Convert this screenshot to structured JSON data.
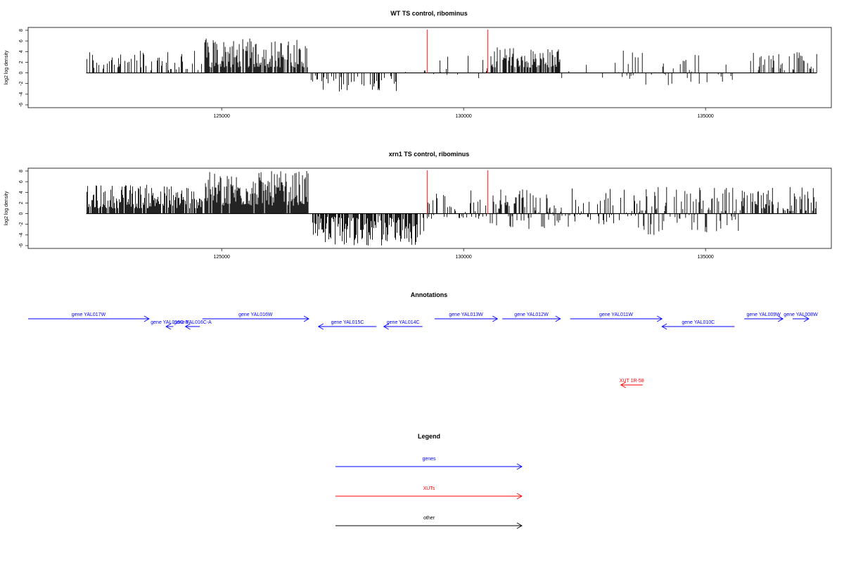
{
  "chart_data": [
    {
      "type": "bar",
      "title": "WT TS control, ribominus",
      "ylabel": "log2 log density",
      "xlabel": "",
      "xlim": [
        121000,
        137600
      ],
      "ylim": [
        -6,
        8
      ],
      "yticks": [
        -6,
        -4,
        -2,
        0,
        2,
        4,
        6,
        8
      ],
      "xticks": [
        125000,
        130000,
        135000
      ],
      "xtick_labels": [
        "125000",
        "130000",
        "135000"
      ],
      "grid": false,
      "markers": [
        {
          "x": 129250,
          "color": "#ff4d4d"
        },
        {
          "x": 130500,
          "color": "#ff4d4d"
        }
      ],
      "series": [
        {
          "color": "#000000",
          "regions": [
            {
              "from": 122200,
              "to": 124600,
              "min": 0.5,
              "max": 4.5,
              "density": 0.35
            },
            {
              "from": 124650,
              "to": 126800,
              "min": 1.0,
              "max": 6.5,
              "density": 0.8
            },
            {
              "from": 126850,
              "to": 128650,
              "min": -3.5,
              "max": -0.5,
              "density": 0.35
            },
            {
              "from": 128650,
              "to": 129250,
              "min": -1.5,
              "max": 0.5,
              "density": 0.15
            },
            {
              "from": 129250,
              "to": 130500,
              "min": -2.0,
              "max": 3.5,
              "density": 0.12
            },
            {
              "from": 130550,
              "to": 132000,
              "min": 1.0,
              "max": 4.8,
              "density": 0.7
            },
            {
              "from": 132000,
              "to": 133300,
              "min": -1.0,
              "max": 2.0,
              "density": 0.08
            },
            {
              "from": 133300,
              "to": 135600,
              "min": -2.5,
              "max": 4.5,
              "density": 0.25
            },
            {
              "from": 135800,
              "to": 137300,
              "min": 0.5,
              "max": 4.5,
              "density": 0.3
            }
          ]
        }
      ]
    },
    {
      "type": "bar",
      "title": "xrn1 TS control, ribominus",
      "ylabel": "log2 log density",
      "xlabel": "",
      "xlim": [
        121000,
        137600
      ],
      "ylim": [
        -6,
        8
      ],
      "yticks": [
        -6,
        -4,
        -2,
        0,
        2,
        4,
        6,
        8
      ],
      "xticks": [
        125000,
        130000,
        135000
      ],
      "xtick_labels": [
        "125000",
        "130000",
        "135000"
      ],
      "grid": false,
      "markers": [
        {
          "x": 129250,
          "color": "#ff4d4d"
        },
        {
          "x": 130500,
          "color": "#ff4d4d"
        }
      ],
      "series": [
        {
          "color": "#000000",
          "regions": [
            {
              "from": 122200,
              "to": 124600,
              "min": 1.0,
              "max": 5.5,
              "density": 0.85
            },
            {
              "from": 124650,
              "to": 126800,
              "min": 1.5,
              "max": 8.0,
              "density": 0.95
            },
            {
              "from": 126850,
              "to": 129200,
              "min": -6.0,
              "max": -0.5,
              "density": 0.85
            },
            {
              "from": 129250,
              "to": 130500,
              "min": -1.0,
              "max": 4.5,
              "density": 0.45
            },
            {
              "from": 130550,
              "to": 132200,
              "min": -3.0,
              "max": 5.0,
              "density": 0.6
            },
            {
              "from": 132200,
              "to": 133600,
              "min": -2.0,
              "max": 5.0,
              "density": 0.35
            },
            {
              "from": 133600,
              "to": 135700,
              "min": -4.0,
              "max": 5.0,
              "density": 0.6
            },
            {
              "from": 135700,
              "to": 137300,
              "min": 0.5,
              "max": 5.0,
              "density": 0.45
            }
          ]
        }
      ]
    }
  ],
  "annotations": {
    "title": "Annotations",
    "features": [
      {
        "label": "gene YAL017W",
        "from": 121000,
        "to": 123500,
        "strand": "+",
        "row": 0,
        "color": "#0000ff"
      },
      {
        "label": "gene YAL016C-B",
        "from": 123850,
        "to": 124000,
        "strand": "-",
        "row": 1,
        "color": "#0000ff"
      },
      {
        "label": "gene YAL016C-A",
        "from": 124250,
        "to": 124550,
        "strand": "-",
        "row": 1,
        "color": "#0000ff"
      },
      {
        "label": "gene YAL016W",
        "from": 124600,
        "to": 126800,
        "strand": "+",
        "row": 0,
        "color": "#0000ff"
      },
      {
        "label": "gene YAL015C",
        "from": 127000,
        "to": 128200,
        "strand": "-",
        "row": 1,
        "color": "#0000ff"
      },
      {
        "label": "gene YAL014C",
        "from": 128350,
        "to": 129150,
        "strand": "-",
        "row": 1,
        "color": "#0000ff"
      },
      {
        "label": "gene YAL013W",
        "from": 129400,
        "to": 130700,
        "strand": "+",
        "row": 0,
        "color": "#0000ff"
      },
      {
        "label": "gene YAL012W",
        "from": 130800,
        "to": 132000,
        "strand": "+",
        "row": 0,
        "color": "#0000ff"
      },
      {
        "label": "gene YAL011W",
        "from": 132200,
        "to": 134100,
        "strand": "+",
        "row": 0,
        "color": "#0000ff"
      },
      {
        "label": "gene YAL010C",
        "from": 134100,
        "to": 135600,
        "strand": "-",
        "row": 1,
        "color": "#0000ff"
      },
      {
        "label": "gene YAL009W",
        "from": 135800,
        "to": 136600,
        "strand": "+",
        "row": 0,
        "color": "#0000ff"
      },
      {
        "label": "gene YAL008W",
        "from": 136800,
        "to": 137450,
        "strand": "+",
        "row": 0,
        "color": "#0000ff"
      },
      {
        "label": "XUT 1R-58",
        "from": 133250,
        "to": 133700,
        "strand": "-",
        "row": 2,
        "color": "#ff0000"
      }
    ]
  },
  "legend": {
    "title": "Legend",
    "items": [
      {
        "label": "genes",
        "color": "#0000ff"
      },
      {
        "label": "XUTs",
        "color": "#ff0000"
      },
      {
        "label": "other",
        "color": "#000000"
      }
    ]
  }
}
